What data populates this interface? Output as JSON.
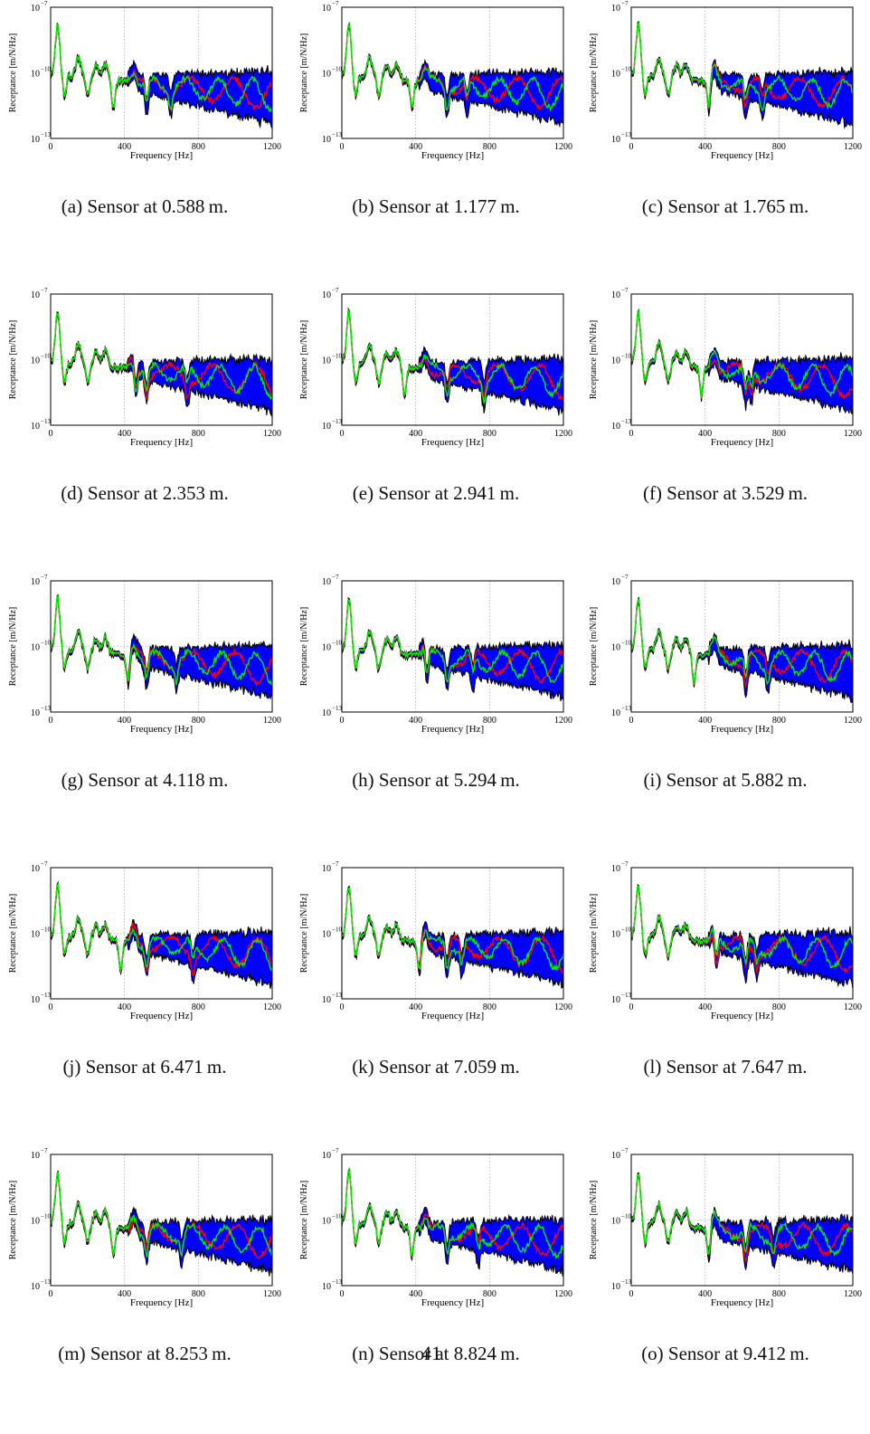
{
  "figure": {
    "axis": {
      "ylabel": "Receptance [m/N/Hz]",
      "xlabel": "Frequency [Hz]",
      "xticks": [
        "0",
        "400",
        "800",
        "1200"
      ],
      "yticks": [
        {
          "base": "10",
          "exp": "−7"
        },
        {
          "base": "10",
          "exp": "−10"
        },
        {
          "base": "10",
          "exp": "−13"
        }
      ]
    },
    "colors": {
      "band_fill": "#0000ff",
      "band_edge": "#000000",
      "red_line": "#ff0000",
      "green_line": "#00ee00",
      "grid": "#9a9a9a"
    },
    "panels": [
      {
        "caption": "(a) Sensor at 0.588 m."
      },
      {
        "caption": "(b) Sensor at 1.177 m."
      },
      {
        "caption": "(c) Sensor at 1.765 m."
      },
      {
        "caption": "(d) Sensor at 2.353 m."
      },
      {
        "caption": "(e) Sensor at 2.941 m."
      },
      {
        "caption": "(f) Sensor at 3.529 m."
      },
      {
        "caption": "(g) Sensor at 4.118 m."
      },
      {
        "caption": "(h) Sensor at 5.294 m."
      },
      {
        "caption": "(i) Sensor at 5.882 m."
      },
      {
        "caption": "(j) Sensor at 6.471 m."
      },
      {
        "caption": "(k) Sensor at 7.059 m."
      },
      {
        "caption": "(l) Sensor at 7.647 m."
      },
      {
        "caption": "(m) Sensor at 8.253 m."
      },
      {
        "caption": "(n) Sensor at 8.824 m."
      },
      {
        "caption": "(o) Sensor at 9.412 m."
      }
    ]
  },
  "page_number": "41",
  "chart_data": {
    "type": "area",
    "xlabel": "Frequency [Hz]",
    "ylabel": "Receptance [m/N/Hz]",
    "xlim": [
      0,
      1200
    ],
    "ylim_log10": [
      -13,
      -7
    ],
    "yscale": "log",
    "grid": true,
    "x": [
      0,
      50,
      100,
      150,
      200,
      250,
      300,
      350,
      400,
      450,
      500,
      550,
      600,
      650,
      700,
      750,
      800,
      850,
      900,
      950,
      1000,
      1050,
      1100,
      1150,
      1200
    ],
    "series": [
      {
        "values_log10": [
          -10.5,
          -7.8,
          -10.3,
          -9.4,
          -10.6,
          -9.7,
          -10.1,
          -10.9,
          -9.6,
          -10.4,
          -10.0,
          -10.6,
          -10.5,
          -10.9,
          -10.4,
          -10.7,
          -10.6,
          -10.8,
          -10.5,
          -10.9,
          -10.7,
          -11.0,
          -10.8,
          -11.1,
          -11.2
        ]
      },
      {
        "values_log10": [
          -10.5,
          -7.8,
          -10.3,
          -9.4,
          -10.6,
          -9.7,
          -10.1,
          -10.7,
          -9.6,
          -10.2,
          -10.1,
          -10.3,
          -10.7,
          -10.2,
          -10.6,
          -10.4,
          -10.8,
          -10.3,
          -10.6,
          -10.2,
          -10.5,
          -10.7,
          -10.3,
          -10.6,
          -10.4
        ]
      }
    ]
  }
}
